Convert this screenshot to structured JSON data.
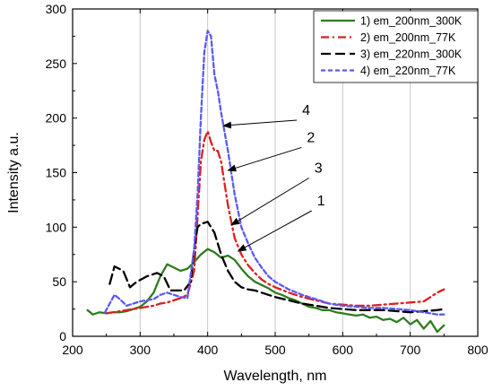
{
  "chart_data": {
    "type": "line",
    "title": "",
    "xlabel": "Wavelength, nm",
    "ylabel": "Intensity a.u.",
    "xlim": [
      200,
      800
    ],
    "ylim": [
      0,
      300
    ],
    "xticks": [
      200,
      300,
      400,
      500,
      600,
      700,
      800
    ],
    "yticks": [
      0,
      50,
      100,
      150,
      200,
      250,
      300
    ],
    "grid": "vertical",
    "legend_position": "top-right",
    "series": [
      {
        "name": "1) em_200nm_300K",
        "color": "#2e7d1e",
        "dash": "solid",
        "points": [
          [
            222,
            24
          ],
          [
            230,
            20
          ],
          [
            240,
            22
          ],
          [
            250,
            21
          ],
          [
            260,
            22
          ],
          [
            270,
            22
          ],
          [
            280,
            23
          ],
          [
            290,
            25
          ],
          [
            300,
            27
          ],
          [
            310,
            32
          ],
          [
            320,
            40
          ],
          [
            330,
            55
          ],
          [
            340,
            66
          ],
          [
            350,
            63
          ],
          [
            360,
            60
          ],
          [
            370,
            62
          ],
          [
            380,
            68
          ],
          [
            390,
            75
          ],
          [
            400,
            80
          ],
          [
            410,
            77
          ],
          [
            420,
            72
          ],
          [
            430,
            74
          ],
          [
            440,
            70
          ],
          [
            450,
            62
          ],
          [
            460,
            55
          ],
          [
            470,
            50
          ],
          [
            480,
            47
          ],
          [
            490,
            44
          ],
          [
            500,
            40
          ],
          [
            510,
            38
          ],
          [
            520,
            35
          ],
          [
            530,
            33
          ],
          [
            540,
            30
          ],
          [
            550,
            27
          ],
          [
            560,
            26
          ],
          [
            570,
            24
          ],
          [
            580,
            24
          ],
          [
            590,
            22
          ],
          [
            600,
            21
          ],
          [
            610,
            20
          ],
          [
            620,
            19
          ],
          [
            630,
            20
          ],
          [
            640,
            17
          ],
          [
            650,
            18
          ],
          [
            660,
            15
          ],
          [
            670,
            16
          ],
          [
            680,
            13
          ],
          [
            690,
            17
          ],
          [
            700,
            11
          ],
          [
            710,
            15
          ],
          [
            720,
            7
          ],
          [
            730,
            14
          ],
          [
            740,
            4
          ],
          [
            750,
            10
          ]
        ]
      },
      {
        "name": "2) em_200nm_77K",
        "color": "#dd1f1f",
        "dash": "dashdot",
        "points": [
          [
            250,
            21
          ],
          [
            260,
            22
          ],
          [
            270,
            23
          ],
          [
            280,
            24
          ],
          [
            290,
            25
          ],
          [
            300,
            26
          ],
          [
            310,
            27
          ],
          [
            320,
            28
          ],
          [
            330,
            30
          ],
          [
            340,
            31
          ],
          [
            350,
            33
          ],
          [
            360,
            35
          ],
          [
            370,
            38
          ],
          [
            380,
            60
          ],
          [
            385,
            110
          ],
          [
            390,
            160
          ],
          [
            395,
            180
          ],
          [
            400,
            188
          ],
          [
            405,
            178
          ],
          [
            410,
            170
          ],
          [
            415,
            170
          ],
          [
            420,
            160
          ],
          [
            430,
            120
          ],
          [
            440,
            90
          ],
          [
            450,
            75
          ],
          [
            460,
            65
          ],
          [
            470,
            58
          ],
          [
            480,
            52
          ],
          [
            490,
            48
          ],
          [
            500,
            45
          ],
          [
            520,
            40
          ],
          [
            540,
            36
          ],
          [
            560,
            33
          ],
          [
            580,
            30
          ],
          [
            600,
            29
          ],
          [
            620,
            28
          ],
          [
            640,
            28
          ],
          [
            660,
            29
          ],
          [
            680,
            30
          ],
          [
            700,
            31
          ],
          [
            720,
            32
          ],
          [
            740,
            40
          ],
          [
            750,
            43
          ]
        ]
      },
      {
        "name": "3) em_220nm_300K",
        "color": "#000000",
        "dash": "dash",
        "points": [
          [
            255,
            48
          ],
          [
            262,
            64
          ],
          [
            275,
            60
          ],
          [
            285,
            45
          ],
          [
            295,
            50
          ],
          [
            310,
            55
          ],
          [
            325,
            58
          ],
          [
            335,
            55
          ],
          [
            345,
            42
          ],
          [
            355,
            42
          ],
          [
            365,
            42
          ],
          [
            375,
            50
          ],
          [
            380,
            80
          ],
          [
            385,
            100
          ],
          [
            390,
            103
          ],
          [
            400,
            105
          ],
          [
            405,
            100
          ],
          [
            410,
            95
          ],
          [
            420,
            75
          ],
          [
            430,
            60
          ],
          [
            440,
            50
          ],
          [
            450,
            45
          ],
          [
            460,
            43
          ],
          [
            470,
            42
          ],
          [
            480,
            40
          ],
          [
            490,
            38
          ],
          [
            500,
            36
          ],
          [
            520,
            33
          ],
          [
            540,
            30
          ],
          [
            560,
            28
          ],
          [
            580,
            26
          ],
          [
            600,
            25
          ],
          [
            620,
            24
          ],
          [
            640,
            24
          ],
          [
            660,
            24
          ],
          [
            680,
            23
          ],
          [
            700,
            22
          ],
          [
            720,
            23
          ],
          [
            740,
            24
          ],
          [
            750,
            25
          ]
        ]
      },
      {
        "name": "4) em_220nm_77K",
        "color": "#5a5af0",
        "dash": "shortdash",
        "points": [
          [
            248,
            22
          ],
          [
            255,
            30
          ],
          [
            262,
            38
          ],
          [
            270,
            34
          ],
          [
            280,
            28
          ],
          [
            290,
            30
          ],
          [
            300,
            32
          ],
          [
            320,
            34
          ],
          [
            330,
            38
          ],
          [
            340,
            40
          ],
          [
            350,
            38
          ],
          [
            360,
            36
          ],
          [
            370,
            35
          ],
          [
            380,
            80
          ],
          [
            385,
            130
          ],
          [
            390,
            200
          ],
          [
            395,
            260
          ],
          [
            400,
            280
          ],
          [
            405,
            275
          ],
          [
            410,
            240
          ],
          [
            415,
            225
          ],
          [
            420,
            205
          ],
          [
            430,
            170
          ],
          [
            440,
            130
          ],
          [
            450,
            100
          ],
          [
            460,
            85
          ],
          [
            470,
            72
          ],
          [
            480,
            63
          ],
          [
            490,
            55
          ],
          [
            500,
            50
          ],
          [
            520,
            43
          ],
          [
            540,
            38
          ],
          [
            560,
            34
          ],
          [
            580,
            30
          ],
          [
            600,
            28
          ],
          [
            620,
            27
          ],
          [
            640,
            26
          ],
          [
            660,
            26
          ],
          [
            680,
            25
          ],
          [
            700,
            24
          ],
          [
            720,
            22
          ],
          [
            740,
            20
          ],
          [
            750,
            20
          ]
        ]
      }
    ],
    "annotations": [
      {
        "text": "4",
        "x": 540,
        "y": 203,
        "target_x": 423,
        "target_y": 193
      },
      {
        "text": "2",
        "x": 547,
        "y": 178,
        "target_x": 430,
        "target_y": 152
      },
      {
        "text": "3",
        "x": 558,
        "y": 150,
        "target_x": 435,
        "target_y": 102
      },
      {
        "text": "1",
        "x": 562,
        "y": 120,
        "target_x": 445,
        "target_y": 78
      }
    ]
  }
}
